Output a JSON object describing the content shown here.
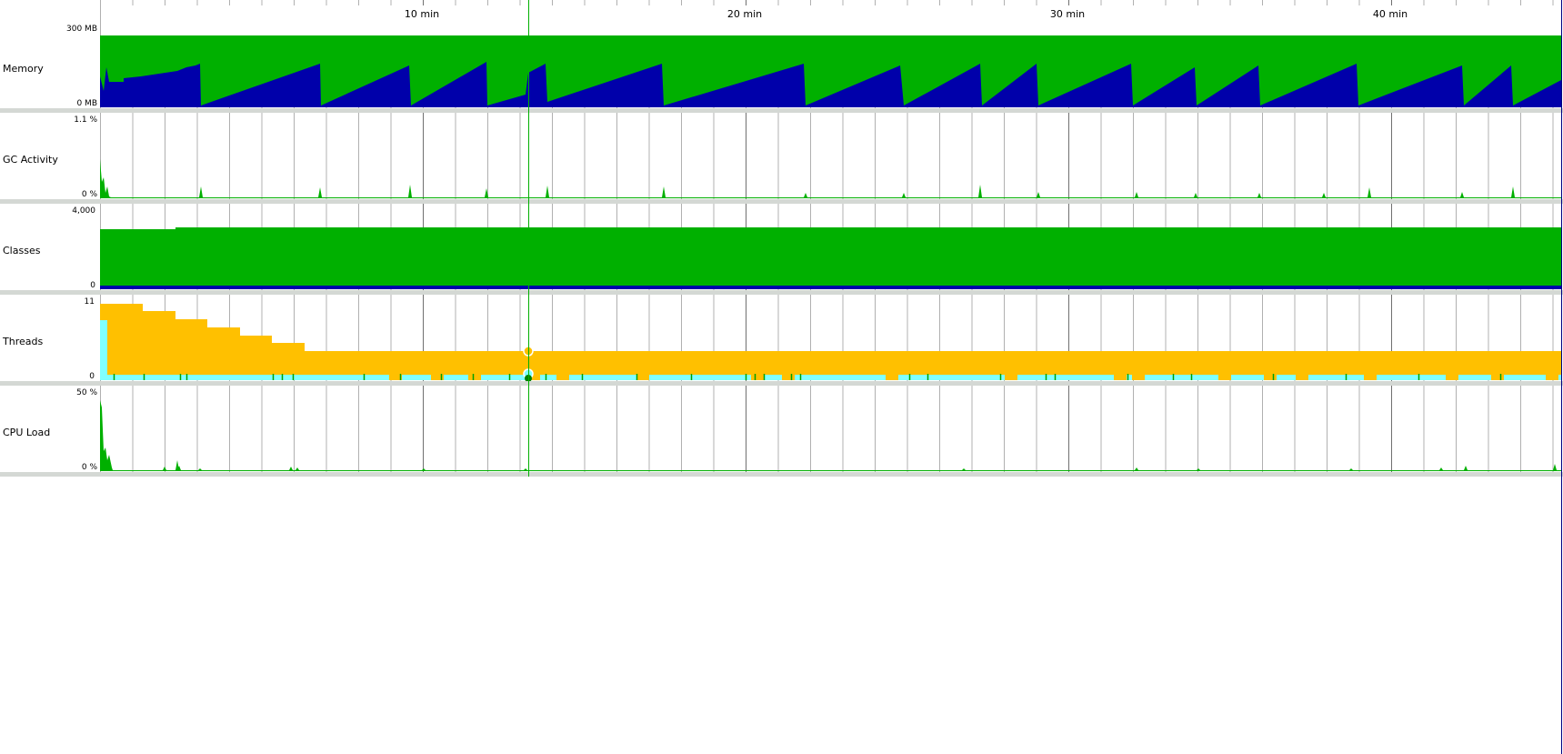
{
  "timeline": {
    "ticks": [
      "10 min",
      "20 min",
      "30 min",
      "40 min"
    ]
  },
  "panels": {
    "memory": {
      "title": "Memory",
      "max": "300 MB",
      "min": "0 MB"
    },
    "gc": {
      "title": "GC Activity",
      "max": "1.1 %",
      "min": "0 %"
    },
    "classes": {
      "title": "Classes",
      "max": "4,000",
      "min": "0"
    },
    "threads": {
      "title": "Threads",
      "max": "11",
      "min": "0"
    },
    "cpu": {
      "title": "CPU Load",
      "max": "50 %",
      "min": "0 %"
    }
  },
  "colors": {
    "green": "#00b000",
    "navy": "#0000aa",
    "orange": "#ffc000",
    "cyan": "#80ffff",
    "grid": "#c8c8c8",
    "grid_major": "#707070",
    "separator": "#d4d8d4",
    "cursor": "#00b000"
  }
}
